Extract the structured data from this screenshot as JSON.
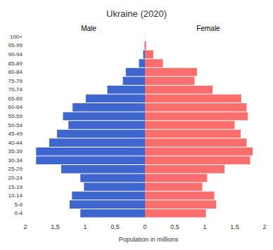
{
  "chart_data": {
    "type": "bar",
    "orientation": "horizontal",
    "title": "Ukraine (2020)",
    "xlabel": "Population in millions",
    "categories": [
      "0-4",
      "5-9",
      "10-14",
      "15-19",
      "20-24",
      "25-29",
      "30-34",
      "35-39",
      "40-44",
      "45-49",
      "50-54",
      "55-59",
      "60-64",
      "65-69",
      "70-74",
      "75-79",
      "80-84",
      "85-89",
      "90-94",
      "95-99",
      "100+"
    ],
    "series": [
      {
        "name": "Male",
        "color": "#3f66cf",
        "values": [
          1.08,
          1.26,
          1.22,
          1.02,
          1.08,
          1.4,
          1.82,
          1.82,
          1.6,
          1.47,
          1.28,
          1.37,
          1.21,
          0.99,
          0.63,
          0.37,
          0.32,
          0.1,
          0.03,
          0.005,
          0.0
        ]
      },
      {
        "name": "Female",
        "color": "#fa6e6e",
        "values": [
          1.02,
          1.19,
          1.16,
          0.96,
          1.04,
          1.33,
          1.76,
          1.8,
          1.7,
          1.6,
          1.5,
          1.72,
          1.7,
          1.61,
          1.13,
          0.83,
          0.87,
          0.3,
          0.14,
          0.02,
          0.002
        ]
      }
    ],
    "xlim": [
      0,
      2
    ],
    "xticks": [
      0,
      {
        "value": 0.5,
        "label": "0,5"
      },
      1,
      {
        "value": 1.5,
        "label": "1,5"
      },
      2
    ],
    "grid": false
  }
}
